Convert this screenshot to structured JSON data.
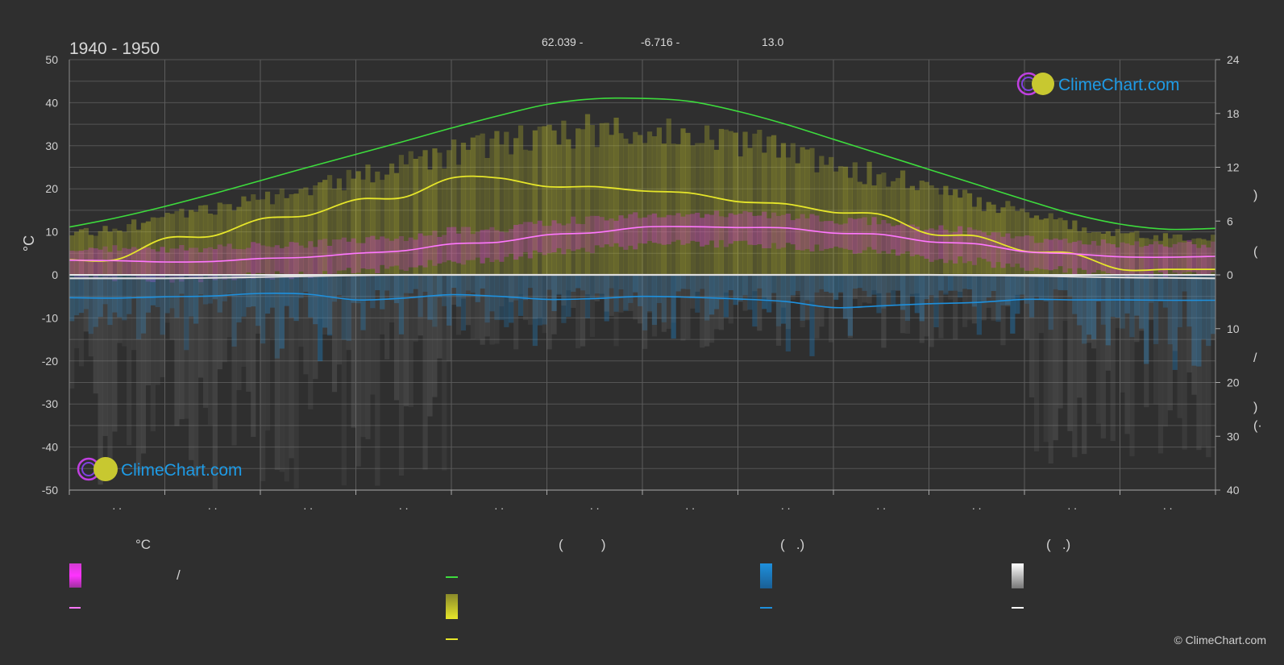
{
  "header": {
    "period": "1940 - 1950",
    "latitude_text": "62.039 -",
    "longitude_text": "-6.716 -",
    "elevation_text": "13.0"
  },
  "brand": {
    "logo_text": "ClimeChart.com",
    "copyright": "© ClimeChart.com"
  },
  "legend": {
    "col1_head": "°C",
    "col1_sep": "/",
    "col2_head": "(          )",
    "col3_head": "(   .)",
    "col4_head": "(   .)"
  },
  "colors": {
    "daylight": "#3ddc3d",
    "sunshine": "#e6e62a",
    "sunshine_band": "#b9b92a",
    "temp_band": "#d23cd2",
    "temp_mean": "#ff77ff",
    "rain": "#1e90dd",
    "snow": "#dddddd",
    "logo": "#1e9be6"
  },
  "chart_data": {
    "type": "line",
    "title": "1940 - 1950",
    "ylabel": "°C",
    "ylim": [
      -50,
      50
    ],
    "y_ticks": [
      50,
      40,
      30,
      20,
      10,
      0,
      -10,
      -20,
      -30,
      -40,
      -50
    ],
    "y2_top_ticks": [
      24,
      18,
      12,
      6,
      0
    ],
    "y2_bottom_ticks": [
      0,
      10,
      20,
      30,
      40
    ],
    "x_tick_labels": [
      ". .",
      ". .",
      ". .",
      ". .",
      ". .",
      ". .",
      ". .",
      ". .",
      ". .",
      ". .",
      ". .",
      ". ."
    ],
    "grid": true,
    "x": [
      0,
      0.5,
      1,
      1.5,
      2,
      2.5,
      3,
      3.5,
      4,
      4.5,
      5,
      5.5,
      6,
      6.5,
      7,
      7.5,
      8,
      8.5,
      9,
      9.5,
      10,
      10.5,
      11,
      11.5,
      12
    ],
    "series": [
      {
        "key": "daylight",
        "values": [
          11.1,
          13.3,
          15.9,
          18.8,
          21.9,
          25,
          28,
          31,
          34.1,
          37,
          39.6,
          40.9,
          41,
          40.3,
          38,
          35,
          31.5,
          28,
          24.5,
          21,
          17.5,
          14.2,
          11.8,
          10.6,
          10.8
        ]
      },
      {
        "key": "sunshine",
        "values": [
          3.5,
          3.6,
          8.5,
          9,
          13,
          13.8,
          17.5,
          18,
          22.5,
          22.5,
          20.5,
          20.5,
          19.5,
          19,
          17,
          16.5,
          14.5,
          14,
          9.5,
          9,
          5.5,
          5,
          1.3,
          1.3,
          1.3
        ]
      },
      {
        "key": "temp_mean",
        "values": [
          3.4,
          3.3,
          3,
          3.1,
          3.8,
          4.1,
          5,
          5.6,
          7.2,
          7.6,
          9.3,
          9.8,
          11.1,
          11.2,
          11,
          10.9,
          9.7,
          9.4,
          7.7,
          7.2,
          5.4,
          4.9,
          4.2,
          4.1,
          4.3
        ]
      },
      {
        "key": "rain",
        "values": [
          -5.3,
          -5.4,
          -5.1,
          -4.9,
          -4.3,
          -4.5,
          -5.8,
          -5.4,
          -4.6,
          -5,
          -5.7,
          -5.5,
          -5,
          -5.2,
          -5.6,
          -6.2,
          -7.6,
          -7.2,
          -6.7,
          -6.4,
          -5.7,
          -5.8,
          -5.8,
          -5.9,
          -5.9
        ]
      },
      {
        "key": "snow",
        "values": [
          -0.8,
          -0.8,
          -0.8,
          -0.7,
          -0.5,
          -0.3,
          -0.1,
          0,
          0,
          0,
          0,
          0,
          0,
          0,
          0,
          0,
          0,
          0,
          0,
          -0.1,
          -0.2,
          -0.4,
          -0.6,
          -0.7,
          -0.8
        ]
      }
    ]
  }
}
